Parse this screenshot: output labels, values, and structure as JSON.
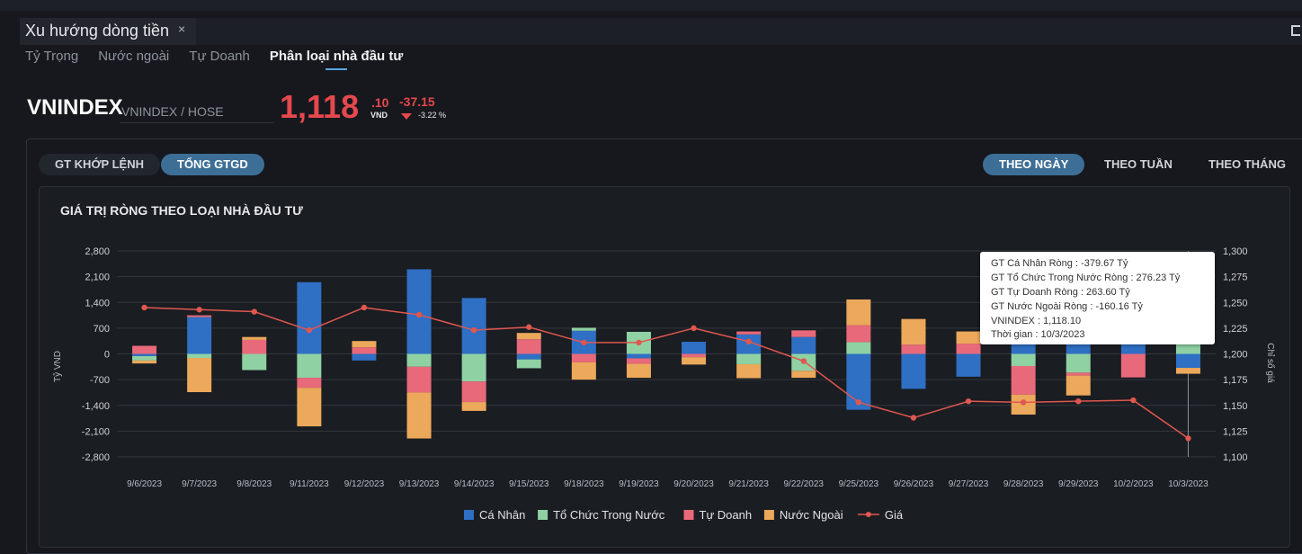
{
  "window": {
    "tab_title": "Xu hướng dòng tiền",
    "close_glyph": "×"
  },
  "subtabs": [
    "Tỷ Trọng",
    "Nước ngoài",
    "Tự Doanh",
    "Phân loại nhà đầu tư"
  ],
  "active_subtab": "Phân loại nhà đầu tư",
  "symbol": {
    "name": "VNINDEX",
    "exchange": "VNINDEX / HOSE"
  },
  "quote": {
    "price_int": "1,118",
    "price_dec": ".10",
    "currency": "VND",
    "change": "-37.15",
    "change_pct": "-3.22 %",
    "color_down": "#e5484d"
  },
  "toggles_left": {
    "items": [
      "GT KHỚP LỆNH",
      "TỔNG GTGD"
    ],
    "active": "TỔNG GTGD"
  },
  "toggles_right": {
    "items": [
      "THEO NGÀY",
      "THEO TUẦN",
      "THEO THÁNG"
    ],
    "active": "THEO NGÀY"
  },
  "tooltip": {
    "lines": [
      "GT Cá Nhân Ròng  : -379.67 Tỷ",
      "GT Tổ Chức Trong Nước Ròng : 276.23 Tỷ",
      "GT Tự Doanh Ròng : 263.60 Tỷ",
      "GT Nước Ngoài Ròng : -160.16 Tỷ",
      "VNINDEX : 1,118.10",
      "Thời gian : 10/3/2023"
    ]
  },
  "chart_data": {
    "type": "bar",
    "title": "GIÁ TRỊ RÒNG THEO LOẠI NHÀ ĐẦU TƯ",
    "stacked": true,
    "categories": [
      "9/6/2023",
      "9/7/2023",
      "9/8/2023",
      "9/11/2023",
      "9/12/2023",
      "9/13/2023",
      "9/14/2023",
      "9/15/2023",
      "9/18/2023",
      "9/19/2023",
      "9/20/2023",
      "9/21/2023",
      "9/22/2023",
      "9/25/2023",
      "9/26/2023",
      "9/27/2023",
      "9/28/2023",
      "9/29/2023",
      "10/2/2023",
      "10/3/2023"
    ],
    "ylabel": "Tỷ VND",
    "ylim": [
      -2800,
      2800
    ],
    "yticks": [
      "2,800",
      "2,100",
      "1,400",
      "700",
      "0",
      "-700",
      "-1,400",
      "-2,100",
      "-2,800"
    ],
    "y2label": "Chỉ số giá",
    "y2lim": [
      1100,
      1300
    ],
    "y2ticks": [
      "1,300",
      "1,275",
      "1,250",
      "1,225",
      "1,200",
      "1,175",
      "1,150",
      "1,125",
      "1,100"
    ],
    "series": [
      {
        "name": "Cá Nhân",
        "color": "#2f6fc4",
        "values": [
          -60,
          1000,
          0,
          1950,
          -180,
          2300,
          1520,
          -150,
          630,
          -120,
          330,
          530,
          460,
          -1520,
          -950,
          -620,
          780,
          700,
          550,
          -380
        ]
      },
      {
        "name": "Tổ Chức Trong Nước",
        "color": "#8fd1a3",
        "values": [
          -120,
          -110,
          -440,
          -650,
          0,
          -350,
          -750,
          -240,
          80,
          600,
          0,
          -280,
          -460,
          320,
          0,
          0,
          -330,
          -510,
          0,
          276
        ]
      },
      {
        "name": "Tự Doanh",
        "color": "#e8697a",
        "values": [
          220,
          50,
          380,
          -270,
          180,
          -700,
          -560,
          400,
          -230,
          -150,
          -90,
          80,
          180,
          460,
          250,
          280,
          -780,
          -80,
          -640,
          264
        ]
      },
      {
        "name": "Nước Ngoài",
        "color": "#eca85b",
        "values": [
          -80,
          -930,
          80,
          -1050,
          170,
          -1250,
          -240,
          170,
          -470,
          -380,
          -200,
          -380,
          -190,
          700,
          700,
          330,
          -540,
          -540,
          0,
          -160
        ]
      }
    ],
    "line": {
      "name": "Giá",
      "color": "#e0574f",
      "values": [
        1245,
        1243,
        1241,
        1223,
        1245,
        1238,
        1223,
        1226,
        1211,
        1211,
        1225,
        1212,
        1193,
        1153,
        1138,
        1154,
        1153,
        1154,
        1155,
        1118
      ]
    },
    "legend_position": "bottom-center",
    "grid": true,
    "highlight_category": "10/3/2023"
  }
}
